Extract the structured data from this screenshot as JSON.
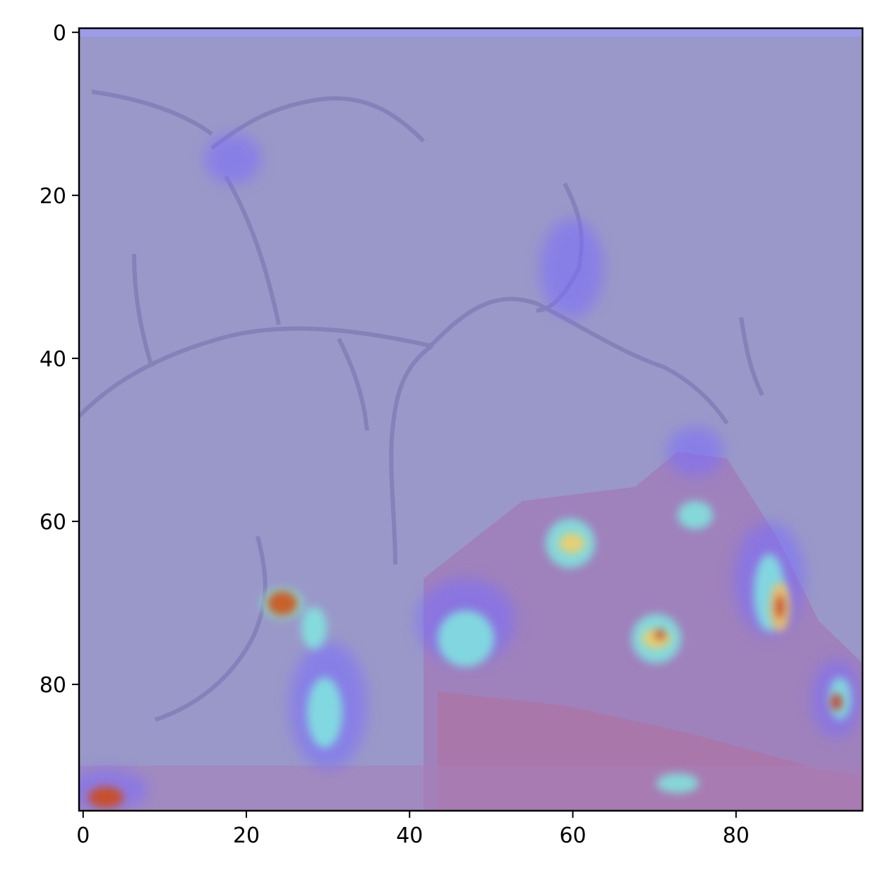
{
  "figure": {
    "type": "image_heatmap_overlay",
    "description_note": "",
    "axes": {
      "x": {
        "range": [
          -0.5,
          95.5
        ],
        "ticks": [
          0,
          20,
          40,
          60,
          80
        ],
        "tick_labels": [
          "0",
          "20",
          "40",
          "60",
          "80"
        ]
      },
      "y": {
        "range": [
          95.5,
          -0.5
        ],
        "inverted": true,
        "ticks": [
          0,
          20,
          40,
          60,
          80
        ],
        "tick_labels": [
          "0",
          "20",
          "40",
          "60",
          "80"
        ]
      }
    },
    "colors": {
      "background": "#9a98c8",
      "edge": "#7a72b0",
      "hot": "#d23a2a",
      "warm": "#e8d070",
      "cool": "#7ee8e0",
      "violet": "#6a4ab8",
      "magenta": "#a86aa0"
    }
  }
}
